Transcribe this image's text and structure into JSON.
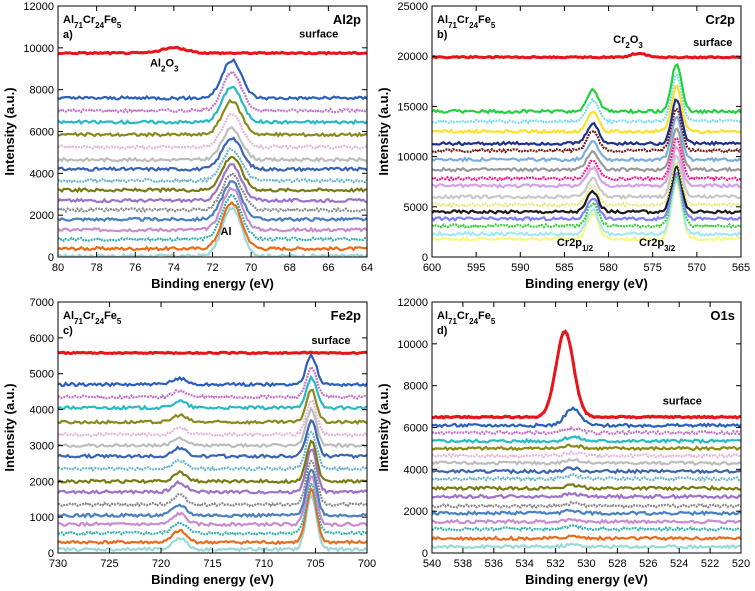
{
  "chart_data": [
    {
      "type": "line",
      "id": "a",
      "title": "Al2p",
      "composition": {
        "base": "Al",
        "s1": "71",
        "b": "Cr",
        "s2": "24",
        "c": "Fe",
        "s3": "5"
      },
      "panel_label": "a)",
      "xlabel": "Binding energy (eV)",
      "ylabel": "Intensity (a.u.)",
      "xlim": [
        80,
        64
      ],
      "ylim": [
        0,
        12000
      ],
      "xticks": [
        80,
        78,
        76,
        74,
        72,
        70,
        68,
        66,
        64
      ],
      "yticks": [
        0,
        2000,
        4000,
        6000,
        8000,
        10000,
        12000
      ],
      "peaks": [
        {
          "center": 71.0,
          "width": 0.7
        }
      ],
      "oxide_peak": {
        "center": 74.0,
        "width": 0.9,
        "height": 250
      },
      "surface": {
        "baseline": 9750,
        "label": "surface"
      },
      "baselines": [
        7600,
        7000,
        6450,
        5850,
        5250,
        4650,
        4200,
        3650,
        3200,
        2700,
        2250,
        1800,
        1300,
        850,
        400,
        50
      ],
      "peak_heights": [
        1800,
        1800,
        1700,
        1600,
        1550,
        1500,
        1500,
        1500,
        1600,
        1700,
        1700,
        1800,
        2000,
        2100,
        2200,
        2300
      ],
      "annotations": [
        {
          "text": "Al",
          "sub": "2",
          "after": "O",
          "sub2": "3",
          "x": 74.5,
          "y": 9100
        },
        {
          "text": "Al",
          "sub": "",
          "after": "",
          "sub2": "",
          "x": 71.3,
          "y": 1050
        },
        {
          "text": "surface",
          "sub": "",
          "after": "",
          "sub2": "",
          "x": 66.5,
          "y": 10500
        }
      ]
    },
    {
      "type": "line",
      "id": "b",
      "title": "Cr2p",
      "composition": {
        "base": "Al",
        "s1": "71",
        "b": "Cr",
        "s2": "24",
        "c": "Fe",
        "s3": "5"
      },
      "panel_label": "b)",
      "xlabel": "Binding energy (eV)",
      "ylabel": "Intensity (a.u.)",
      "xlim": [
        600,
        565
      ],
      "ylim": [
        0,
        25000
      ],
      "xticks": [
        600,
        595,
        590,
        585,
        580,
        575,
        570,
        565
      ],
      "yticks": [
        0,
        5000,
        10000,
        15000,
        20000,
        25000
      ],
      "peaks": [
        {
          "center": 581.8,
          "width": 0.9,
          "ratio": 0.45
        },
        {
          "center": 572.3,
          "width": 0.8,
          "ratio": 1.0
        }
      ],
      "oxide_peak": {
        "center": 576.6,
        "width": 1.2,
        "height": 400
      },
      "surface": {
        "baseline": 19900,
        "label": "surface"
      },
      "baselines": [
        14500,
        13500,
        12500,
        11300,
        10600,
        9700,
        8700,
        7800,
        7100,
        6000,
        5200,
        4500,
        3800,
        3100,
        2300,
        1800
      ],
      "peak_heights": [
        4800,
        4700,
        4500,
        4400,
        4300,
        4200,
        4100,
        4000,
        3900,
        4100,
        4300,
        4500,
        4700,
        5000,
        5400,
        5700
      ],
      "annotations": [
        {
          "text": "Cr",
          "sub": "2",
          "after": "O",
          "sub2": "3",
          "x": 577.8,
          "y": 21300
        },
        {
          "text": "Cr2p",
          "sub": "1/2",
          "after": "",
          "sub2": "",
          "x": 583.8,
          "y": 1100
        },
        {
          "text": "Cr2p",
          "sub": "3/2",
          "after": "",
          "sub2": "",
          "x": 574.5,
          "y": 1100
        },
        {
          "text": "surface",
          "sub": "",
          "after": "",
          "sub2": "",
          "x": 568.2,
          "y": 21000
        }
      ]
    },
    {
      "type": "line",
      "id": "c",
      "title": "Fe2p",
      "composition": {
        "base": "Al",
        "s1": "71",
        "b": "Cr",
        "s2": "24",
        "c": "Fe",
        "s3": "5"
      },
      "panel_label": "c)",
      "xlabel": "Binding energy (eV)",
      "ylabel": "Intensity (a.u.)",
      "xlim": [
        730,
        700
      ],
      "ylim": [
        0,
        7000
      ],
      "xticks": [
        730,
        725,
        720,
        715,
        710,
        705,
        700
      ],
      "yticks": [
        0,
        1000,
        2000,
        3000,
        4000,
        5000,
        6000,
        7000
      ],
      "peaks": [
        {
          "center": 718.2,
          "width": 0.9,
          "ratio": 0.22
        },
        {
          "center": 705.4,
          "width": 0.7,
          "ratio": 1.0
        }
      ],
      "oxide_peak": {
        "center": 711.0,
        "width": 1.0,
        "height": 0
      },
      "surface": {
        "baseline": 5580,
        "label": "surface"
      },
      "baselines": [
        4700,
        4350,
        4050,
        3650,
        3300,
        3000,
        2700,
        2350,
        2000,
        1700,
        1350,
        1050,
        800,
        550,
        300,
        100
      ],
      "peak_heights": [
        800,
        800,
        850,
        900,
        950,
        1000,
        1000,
        1050,
        1100,
        1200,
        1250,
        1300,
        1350,
        1400,
        1450,
        1500
      ],
      "annotations": [
        {
          "text": "surface",
          "sub": "",
          "after": "",
          "sub2": "",
          "x": 703.5,
          "y": 5830
        }
      ]
    },
    {
      "type": "line",
      "id": "d",
      "title": "O1s",
      "composition": {
        "base": "Al",
        "s1": "71",
        "b": "Cr",
        "s2": "24",
        "c": "Fe",
        "s3": "5"
      },
      "panel_label": "d)",
      "xlabel": "Binding energy (eV)",
      "ylabel": "Intensity (a.u.)",
      "xlim": [
        540,
        520
      ],
      "ylim": [
        0,
        12000
      ],
      "xticks": [
        540,
        538,
        536,
        534,
        532,
        530,
        528,
        526,
        524,
        522,
        520
      ],
      "yticks": [
        0,
        2000,
        4000,
        6000,
        8000,
        10000,
        12000
      ],
      "peaks": [
        {
          "center": 530.9,
          "width": 0.7,
          "ratio": 1.0
        }
      ],
      "oxide_peak": {
        "center": 531.4,
        "width": 0.8,
        "height": 4100
      },
      "surface": {
        "baseline": 6500,
        "label": "surface"
      },
      "baselines": [
        6100,
        5750,
        5350,
        5000,
        4650,
        4300,
        3900,
        3550,
        3100,
        2700,
        2250,
        1900,
        1500,
        1150,
        700,
        300
      ],
      "peak_heights": [
        800,
        200,
        200,
        150,
        150,
        150,
        150,
        150,
        120,
        120,
        120,
        120,
        100,
        100,
        100,
        100
      ],
      "annotations": [
        {
          "text": "surface",
          "sub": "",
          "after": "",
          "sub2": "",
          "x": 523.8,
          "y": 7100
        }
      ]
    }
  ],
  "colors": {
    "surface": "#e8141c",
    "series": [
      "#2a5fbe",
      "#c573c9",
      "#26b9c6",
      "#8a8a1a",
      "#e5b6d8",
      "#bdbdbd",
      "#3b64b3",
      "#6ab7c9",
      "#7a7a16",
      "#9e72c6",
      "#8a8a8a",
      "#4a7fc0",
      "#c88cd0",
      "#3ab0b0",
      "#e86c1c",
      "#9ad9d9"
    ],
    "cr_series": [
      "#23d13a",
      "#7bdcf2",
      "#ffe028",
      "#1f2f8a",
      "#7a1a1a",
      "#7aaee0",
      "#9a9a9a",
      "#ff1a8c",
      "#d4a0e8",
      "#c8c8c8",
      "#e8e880",
      "#1a1a1a",
      "#7f7fff",
      "#3ad13a",
      "#a4e8f8",
      "#f8f880"
    ]
  }
}
